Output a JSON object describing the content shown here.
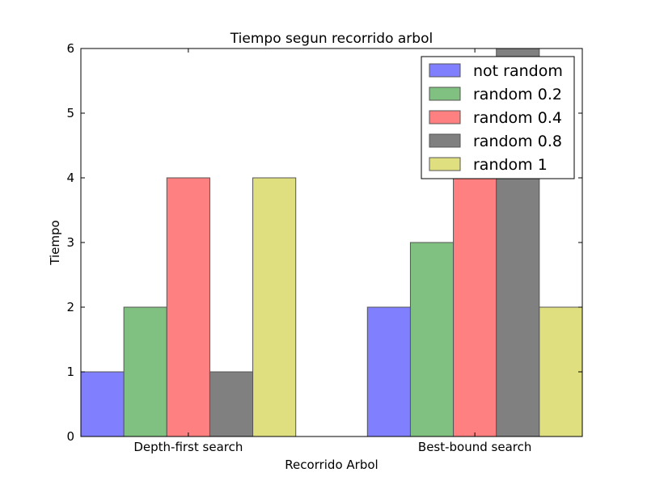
{
  "chart_data": {
    "type": "bar",
    "title": "Tiempo segun recorrido arbol",
    "xlabel": "Recorrido Arbol",
    "ylabel": "Tiempo",
    "categories": [
      "Depth-first search",
      "Best-bound search"
    ],
    "ylim": [
      0,
      6
    ],
    "yticks": [
      "0",
      "1",
      "2",
      "3",
      "4",
      "5",
      "6"
    ],
    "grid": false,
    "legend_position": "top-right",
    "series": [
      {
        "name": "not random",
        "values": [
          1,
          2
        ],
        "color": "#8080ff"
      },
      {
        "name": "random 0.2",
        "values": [
          2,
          3
        ],
        "color": "#80c080"
      },
      {
        "name": "random 0.4",
        "values": [
          4,
          4
        ],
        "color": "#ff8080"
      },
      {
        "name": "random 0.8",
        "values": [
          1,
          6
        ],
        "color": "#808080"
      },
      {
        "name": "random 1",
        "values": [
          4,
          2
        ],
        "color": "#dfdf80"
      }
    ]
  }
}
